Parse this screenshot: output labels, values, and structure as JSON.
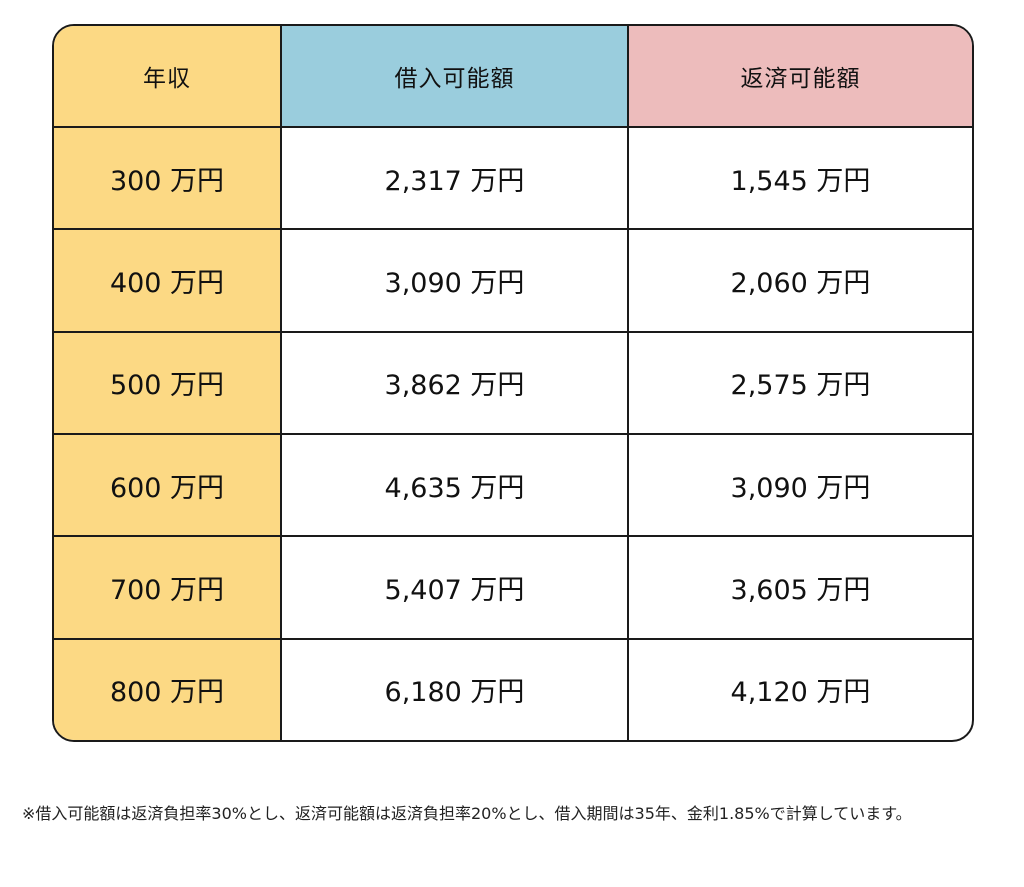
{
  "table": {
    "headers": {
      "income": "年収",
      "borrowable": "借入可能額",
      "repayable": "返済可能額"
    },
    "rows": [
      {
        "income": "300 万円",
        "borrowable": "2,317 万円",
        "repayable": "1,545 万円"
      },
      {
        "income": "400 万円",
        "borrowable": "3,090 万円",
        "repayable": "2,060 万円"
      },
      {
        "income": "500 万円",
        "borrowable": "3,862 万円",
        "repayable": "2,575 万円"
      },
      {
        "income": "600 万円",
        "borrowable": "4,635 万円",
        "repayable": "3,090 万円"
      },
      {
        "income": "700 万円",
        "borrowable": "5,407 万円",
        "repayable": "3,605 万円"
      },
      {
        "income": "800 万円",
        "borrowable": "6,180 万円",
        "repayable": "4,120 万円"
      }
    ]
  },
  "footnote": "※借入可能額は返済負担率30%とし、返済可能額は返済負担率20%とし、借入期間は35年、金利1.85%で計算しています。",
  "colors": {
    "income": "#fcd984",
    "borrowable_header": "#9acddd",
    "repayable_header": "#edbcbc",
    "border": "#1a1a1a"
  }
}
